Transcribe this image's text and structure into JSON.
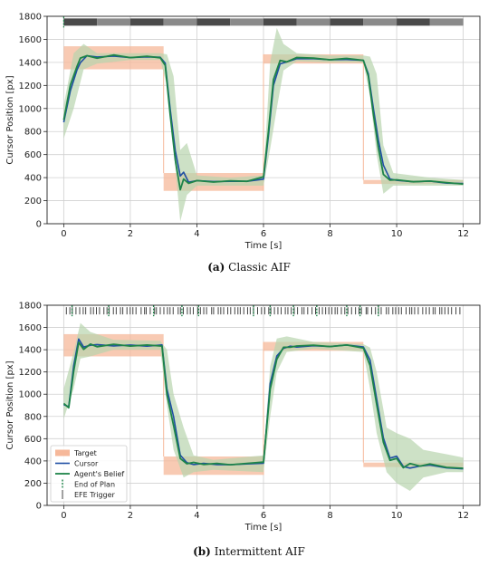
{
  "captions": [
    {
      "letter": "(a)",
      "text": "Classic AIF"
    },
    {
      "letter": "(b)",
      "text": "Intermittent AIF"
    }
  ],
  "colors": {
    "target": "#f6b89a",
    "cursor": "#1f4fa3",
    "belief": "#1e8449",
    "belief_band": "#b8d4ae",
    "marker": "#444444",
    "grid": "#d0d0d0"
  },
  "legend": {
    "position": "lower-left",
    "entries": [
      "Target",
      "Cursor",
      "Agent's Belief",
      "End of Plan",
      "EFE Trigger"
    ]
  },
  "chart_data": [
    {
      "type": "line",
      "panel": "a",
      "title": "",
      "xlabel": "Time [s]",
      "ylabel": "Cursor Position [px]",
      "xlim": [
        -0.5,
        12.5
      ],
      "ylim": [
        0,
        1800
      ],
      "xticks": [
        0,
        2,
        4,
        6,
        8,
        10,
        12
      ],
      "yticks": [
        0,
        200,
        400,
        600,
        800,
        1000,
        1200,
        1400,
        1600,
        1800
      ],
      "grid": true,
      "target_bands": [
        {
          "t0": 0,
          "t1": 3,
          "low": 1340,
          "high": 1540
        },
        {
          "t0": 3,
          "t1": 6,
          "low": 285,
          "high": 440
        },
        {
          "t0": 6,
          "t1": 9,
          "low": 1390,
          "high": 1470
        },
        {
          "t0": 9,
          "t1": 12,
          "low": 345,
          "high": 380
        }
      ],
      "series": [
        {
          "name": "Cursor",
          "x": [
            0,
            0.2,
            0.4,
            0.5,
            0.7,
            1.0,
            1.5,
            2.0,
            2.5,
            2.9,
            3.05,
            3.2,
            3.35,
            3.5,
            3.6,
            3.75,
            4.0,
            4.5,
            5.0,
            5.5,
            6.0,
            6.15,
            6.3,
            6.5,
            6.7,
            7.0,
            7.5,
            8.0,
            8.5,
            9.0,
            9.15,
            9.3,
            9.45,
            9.6,
            9.8,
            10.0,
            10.5,
            11.0,
            11.5,
            12.0
          ],
          "y": [
            880,
            1150,
            1330,
            1390,
            1450,
            1440,
            1450,
            1440,
            1450,
            1450,
            1400,
            1000,
            640,
            420,
            450,
            360,
            370,
            360,
            360,
            360,
            380,
            760,
            1200,
            1390,
            1410,
            1440,
            1440,
            1430,
            1430,
            1420,
            1300,
            1000,
            720,
            500,
            380,
            370,
            360,
            370,
            355,
            355
          ]
        },
        {
          "name": "Agent's Belief",
          "x": [
            0,
            0.2,
            0.4,
            0.5,
            0.7,
            1.0,
            1.5,
            2.0,
            2.5,
            2.9,
            3.05,
            3.2,
            3.35,
            3.5,
            3.6,
            3.75,
            4.0,
            4.5,
            5.0,
            5.5,
            6.0,
            6.15,
            6.3,
            6.5,
            6.7,
            7.0,
            7.5,
            8.0,
            8.5,
            9.0,
            9.15,
            9.3,
            9.45,
            9.6,
            9.8,
            10.0,
            10.5,
            11.0,
            11.5,
            12.0
          ],
          "y": [
            900,
            1200,
            1360,
            1430,
            1450,
            1430,
            1460,
            1440,
            1455,
            1445,
            1380,
            950,
            560,
            300,
            390,
            350,
            370,
            355,
            365,
            360,
            400,
            800,
            1250,
            1420,
            1410,
            1450,
            1445,
            1430,
            1440,
            1420,
            1280,
            950,
            650,
            420,
            370,
            375,
            360,
            370,
            360,
            350
          ]
        }
      ],
      "belief_uncertainty": {
        "x": [
          0,
          0.3,
          0.6,
          1.0,
          2.0,
          2.9,
          3.1,
          3.3,
          3.5,
          3.7,
          4.0,
          5.0,
          6.0,
          6.2,
          6.4,
          6.6,
          7.0,
          8.0,
          9.0,
          9.2,
          9.4,
          9.6,
          9.9,
          11.0,
          12.0
        ],
        "low": [
          740,
          1000,
          1340,
          1390,
          1420,
          1420,
          1200,
          650,
          20,
          250,
          330,
          330,
          330,
          650,
          1000,
          1330,
          1410,
          1400,
          1400,
          1100,
          600,
          260,
          330,
          330,
          330
        ],
        "high": [
          1030,
          1480,
          1560,
          1480,
          1480,
          1480,
          1470,
          1280,
          640,
          700,
          420,
          400,
          420,
          1400,
          1700,
          1560,
          1480,
          1460,
          1460,
          1450,
          1300,
          680,
          440,
          400,
          380
        ]
      },
      "efe_triggers": {
        "count": 0
      },
      "plan_end_bar": {
        "y": 1750,
        "segments": 12
      }
    },
    {
      "type": "line",
      "panel": "b",
      "title": "",
      "xlabel": "Time [s]",
      "ylabel": "Cursor Position [px]",
      "xlim": [
        -0.5,
        12.5
      ],
      "ylim": [
        0,
        1800
      ],
      "xticks": [
        0,
        2,
        4,
        6,
        8,
        10,
        12
      ],
      "yticks": [
        0,
        200,
        400,
        600,
        800,
        1000,
        1200,
        1400,
        1600,
        1800
      ],
      "grid": true,
      "target_bands": [
        {
          "t0": 0,
          "t1": 3,
          "low": 1340,
          "high": 1540
        },
        {
          "t0": 3,
          "t1": 6,
          "low": 275,
          "high": 440
        },
        {
          "t0": 6,
          "t1": 9,
          "low": 1390,
          "high": 1470
        },
        {
          "t0": 9,
          "t1": 12,
          "low": 345,
          "high": 385
        }
      ],
      "series": [
        {
          "name": "Cursor",
          "x": [
            0,
            0.15,
            0.3,
            0.45,
            0.6,
            0.8,
            1.0,
            1.5,
            2.0,
            2.5,
            2.95,
            3.1,
            3.3,
            3.5,
            3.7,
            3.9,
            4.2,
            4.6,
            5.0,
            5.5,
            6.0,
            6.2,
            6.4,
            6.6,
            6.8,
            7.0,
            7.5,
            8.0,
            8.5,
            9.0,
            9.2,
            9.4,
            9.6,
            9.8,
            10.0,
            10.2,
            10.4,
            10.7,
            11.0,
            11.5,
            12.0
          ],
          "y": [
            900,
            880,
            1250,
            1490,
            1420,
            1440,
            1450,
            1440,
            1450,
            1440,
            1450,
            1050,
            800,
            450,
            380,
            360,
            370,
            360,
            360,
            370,
            380,
            1100,
            1350,
            1420,
            1440,
            1430,
            1440,
            1430,
            1440,
            1420,
            1300,
            950,
            600,
            420,
            440,
            350,
            340,
            360,
            370,
            345,
            335
          ]
        },
        {
          "name": "Agent's Belief",
          "x": [
            0,
            0.15,
            0.3,
            0.45,
            0.6,
            0.8,
            1.0,
            1.5,
            2.0,
            2.5,
            2.95,
            3.1,
            3.3,
            3.5,
            3.7,
            3.9,
            4.2,
            4.6,
            5.0,
            5.5,
            6.0,
            6.2,
            6.4,
            6.6,
            6.8,
            7.0,
            7.5,
            8.0,
            8.5,
            9.0,
            9.2,
            9.4,
            9.6,
            9.8,
            10.0,
            10.2,
            10.4,
            10.7,
            11.0,
            11.5,
            12.0
          ],
          "y": [
            910,
            870,
            1200,
            1460,
            1400,
            1450,
            1430,
            1455,
            1440,
            1450,
            1440,
            1000,
            720,
            420,
            370,
            380,
            360,
            370,
            360,
            375,
            390,
            1050,
            1320,
            1430,
            1430,
            1440,
            1445,
            1430,
            1440,
            1410,
            1250,
            900,
            560,
            400,
            420,
            340,
            380,
            360,
            380,
            350,
            340
          ]
        }
      ],
      "belief_uncertainty": {
        "x": [
          0,
          0.3,
          0.5,
          0.8,
          1.5,
          2.9,
          3.1,
          3.3,
          3.6,
          3.9,
          4.5,
          6.0,
          6.2,
          6.4,
          6.7,
          7.5,
          9.0,
          9.2,
          9.4,
          9.7,
          10.0,
          10.4,
          10.8,
          11.5,
          12.0
        ],
        "low": [
          780,
          1050,
          1320,
          1340,
          1400,
          1400,
          900,
          500,
          250,
          300,
          320,
          300,
          800,
          1200,
          1380,
          1410,
          1380,
          1050,
          650,
          300,
          200,
          130,
          250,
          300,
          300
        ],
        "high": [
          1050,
          1380,
          1640,
          1560,
          1490,
          1480,
          1400,
          1000,
          700,
          450,
          410,
          450,
          1250,
          1500,
          1520,
          1470,
          1450,
          1420,
          1200,
          700,
          650,
          600,
          500,
          460,
          430
        ]
      },
      "efe_triggers": {
        "count": 118
      },
      "plan_end_markers": [
        0.25,
        1.35,
        2.7,
        3.55,
        4.05,
        5.7,
        6.2,
        6.9,
        7.6,
        8.5,
        8.9,
        9.45
      ]
    }
  ]
}
